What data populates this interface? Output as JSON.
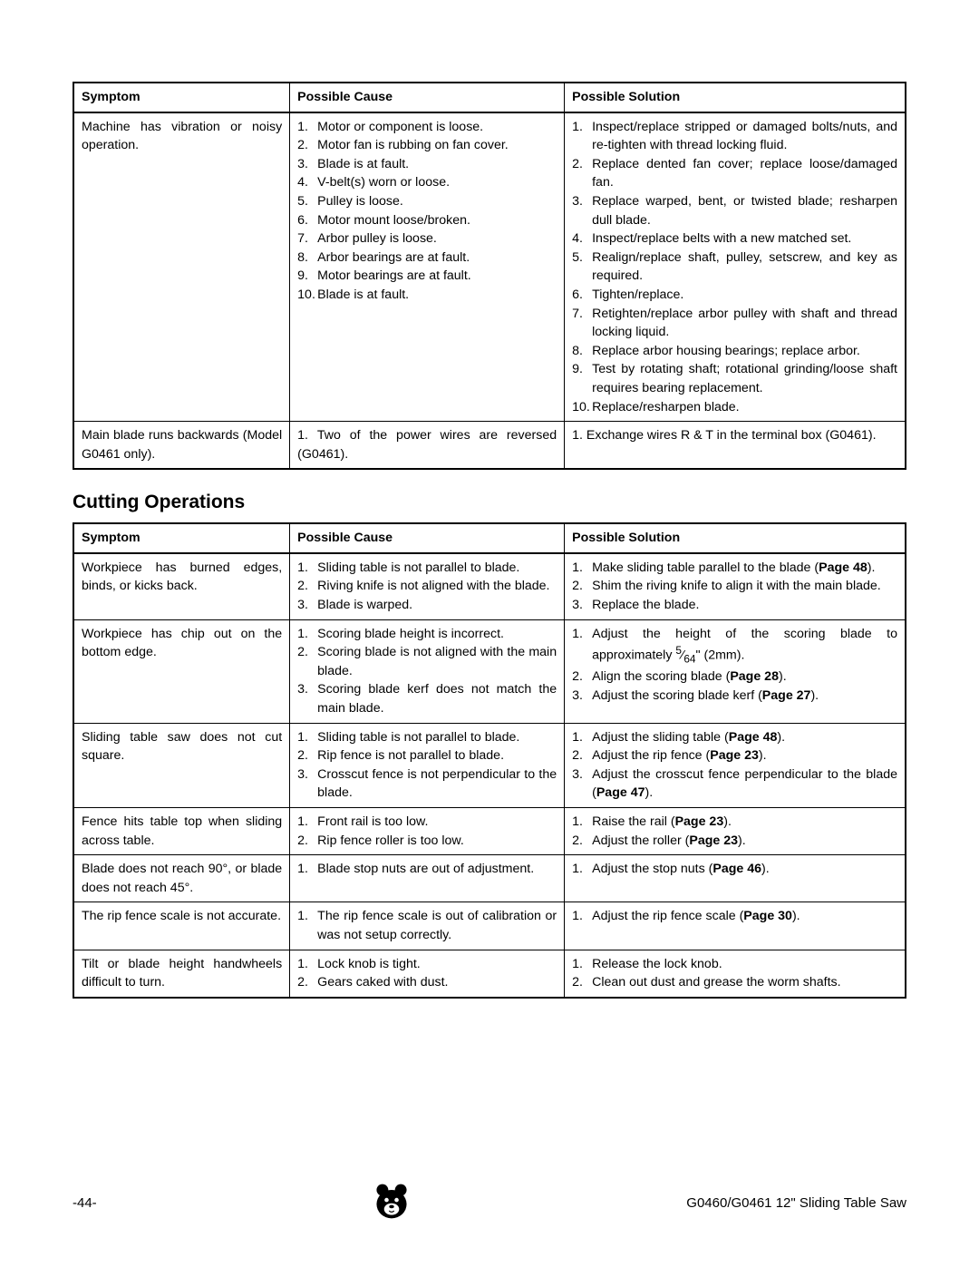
{
  "table1": {
    "headers": {
      "sym": "Symptom",
      "cause": "Possible Cause",
      "sol": "Possible Solution"
    },
    "rows": [
      {
        "sym": "Machine has vibration or noisy operation.",
        "cause": [
          "Motor or component is loose.",
          "Motor fan is rubbing on fan cover.",
          "Blade is at fault.",
          "V-belt(s) worn or loose.",
          "Pulley is loose.",
          "Motor mount loose/broken.",
          "Arbor pulley is loose.",
          "Arbor bearings are at fault.",
          "Motor bearings are at fault.",
          "Blade is at fault."
        ],
        "sol": [
          "Inspect/replace stripped or damaged bolts/nuts, and re-tighten with thread locking fluid.",
          "Replace dented fan cover; replace loose/damaged fan.",
          "Replace warped, bent, or twisted blade; resharpen dull blade.",
          "Inspect/replace belts with a new matched set.",
          "Realign/replace shaft, pulley, setscrew, and key as required.",
          "Tighten/replace.",
          "Retighten/replace arbor pulley with shaft and thread locking liquid.",
          "Replace arbor housing bearings; replace arbor.",
          "Test by rotating shaft; rotational grinding/loose shaft requires bearing replacement.",
          "Replace/resharpen blade."
        ]
      },
      {
        "sym": "Main blade runs backwards (Model G0461 only).",
        "cause_html": "1. Two of the power wires are reversed (G0461).",
        "sol_html": "1. Exchange wires R & T in the terminal box (G0461)."
      }
    ]
  },
  "section_heading": "Cutting Operations",
  "table2": {
    "headers": {
      "sym": "Symptom",
      "cause": "Possible Cause",
      "sol": "Possible Solution"
    },
    "rows": [
      {
        "sym": "Workpiece has burned edges, binds, or kicks back.",
        "cause": [
          "Sliding table is not parallel to blade.",
          "Riving knife is not aligned with the blade.",
          "Blade is warped."
        ],
        "sol_html": [
          "Make sliding table parallel to the blade&nbsp;(<b>Page 48</b>).",
          "Shim the riving knife to align it with the main blade.",
          "Replace the blade."
        ]
      },
      {
        "sym": "Workpiece has chip out on the bottom edge.",
        "cause": [
          "Scoring blade height is incorrect.",
          "Scoring blade is not aligned with the main blade.",
          "Scoring blade kerf does not match the main blade."
        ],
        "sol_html": [
          "Adjust the height of the scoring blade to approximately <sup>5</sup>⁄<sub>64</sub>\" (2mm).",
          "Align the scoring blade (<b>Page 28</b>).",
          "Adjust the scoring blade kerf (<b>Page 27</b>)."
        ]
      },
      {
        "sym": "Sliding table saw does not cut square.",
        "cause": [
          "Sliding table is not parallel to blade.",
          "Rip fence is not parallel to blade.",
          "Crosscut fence is not perpendicular to the blade."
        ],
        "sol_html": [
          "Adjust the sliding table (<b>Page 48</b>).",
          "Adjust the rip fence (<b>Page 23</b>).",
          "Adjust the crosscut fence perpendicular to the blade (<b>Page 47</b>)."
        ]
      },
      {
        "sym": "Fence hits table top when sliding across table.",
        "cause": [
          "Front rail is too low.",
          "Rip fence roller is too low."
        ],
        "sol_html": [
          "Raise the rail (<b>Page 23</b>).",
          "Adjust the roller (<b>Page 23</b>)."
        ]
      },
      {
        "sym": "Blade does not reach 90°, or blade does not reach 45°.",
        "cause": [
          "Blade stop nuts are out of adjustment."
        ],
        "sol_html": [
          "Adjust the stop nuts (<b>Page 46</b>)."
        ]
      },
      {
        "sym": "The rip fence scale is not accurate.",
        "cause": [
          "The rip fence scale is out of calibration or was not setup correctly."
        ],
        "sol_html": [
          "Adjust the rip fence scale (<b>Page 30</b>)."
        ]
      },
      {
        "sym": "Tilt or blade height handwheels difficult to turn.",
        "cause": [
          "Lock knob is tight.",
          "Gears caked with dust."
        ],
        "sol_html": [
          "Release the lock knob.",
          "Clean out dust and grease the worm shafts."
        ]
      }
    ]
  },
  "footer": {
    "page": "-44-",
    "title": "G0460/G0461 12\" Sliding Table Saw"
  }
}
